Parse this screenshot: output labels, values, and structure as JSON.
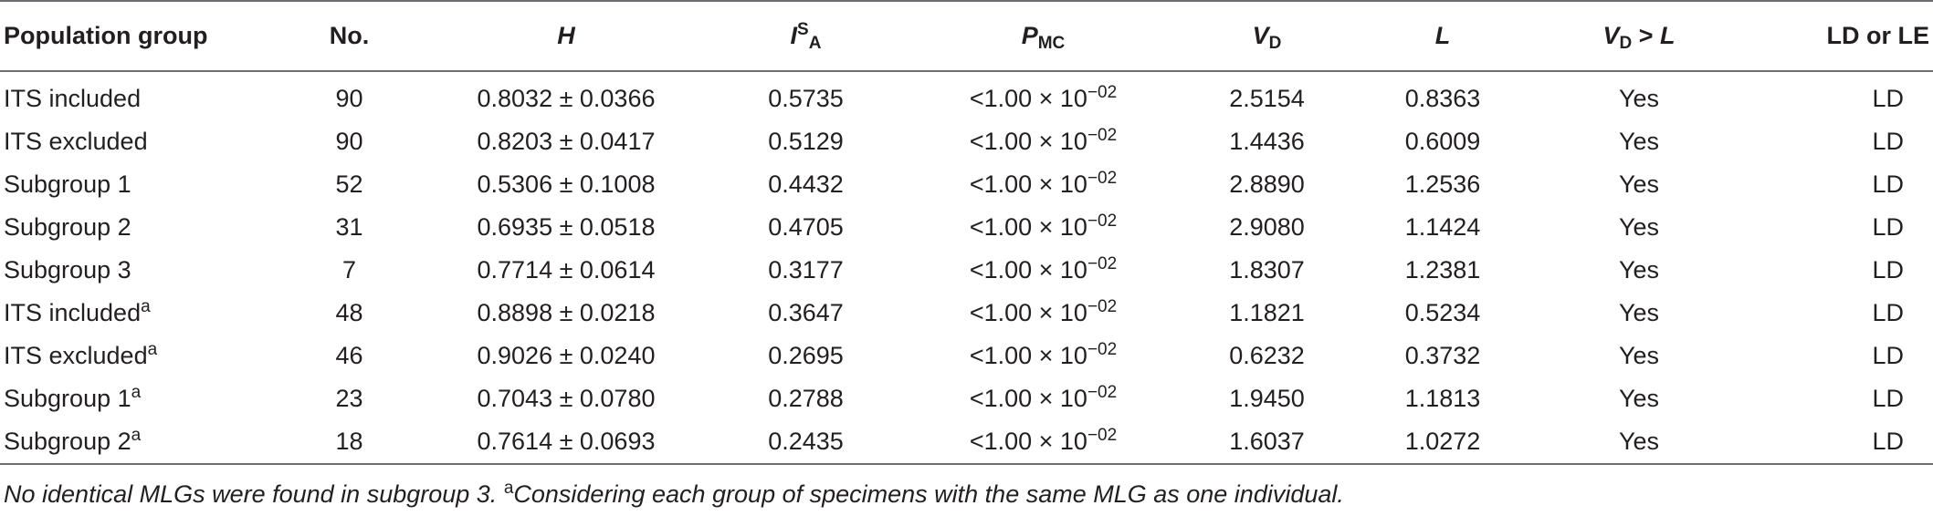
{
  "table": {
    "headers": {
      "group": "Population group",
      "no": "No.",
      "h": "H",
      "ia_base": "I",
      "ia_sup": "S",
      "ia_sub": "A",
      "pmc_base": "P",
      "pmc_sub": "MC",
      "vd_base": "V",
      "vd_sub": "D",
      "l": "L",
      "cmp_v": "V",
      "cmp_sub": "D",
      "cmp_op": " > ",
      "cmp_l": "L",
      "ld": "LD or LE"
    },
    "rows": [
      {
        "group": "ITS included",
        "sup": "",
        "no": "90",
        "h": "0.8032 ± 0.0366",
        "ia": "0.5735",
        "pmc_base": "<1.00 × 10",
        "pmc_exp": "−02",
        "vd": "2.5154",
        "l": "0.8363",
        "cmp": "Yes",
        "ld": "LD"
      },
      {
        "group": "ITS excluded",
        "sup": "",
        "no": "90",
        "h": "0.8203 ± 0.0417",
        "ia": "0.5129",
        "pmc_base": "<1.00 × 10",
        "pmc_exp": "−02",
        "vd": "1.4436",
        "l": "0.6009",
        "cmp": "Yes",
        "ld": "LD"
      },
      {
        "group": "Subgroup 1",
        "sup": "",
        "no": "52",
        "h": "0.5306 ± 0.1008",
        "ia": "0.4432",
        "pmc_base": "<1.00 × 10",
        "pmc_exp": "−02",
        "vd": "2.8890",
        "l": "1.2536",
        "cmp": "Yes",
        "ld": "LD"
      },
      {
        "group": "Subgroup 2",
        "sup": "",
        "no": "31",
        "h": "0.6935 ± 0.0518",
        "ia": "0.4705",
        "pmc_base": "<1.00 × 10",
        "pmc_exp": "−02",
        "vd": "2.9080",
        "l": "1.1424",
        "cmp": "Yes",
        "ld": "LD"
      },
      {
        "group": "Subgroup 3",
        "sup": "",
        "no": "7",
        "h": "0.7714 ± 0.0614",
        "ia": "0.3177",
        "pmc_base": "<1.00 × 10",
        "pmc_exp": "−02",
        "vd": "1.8307",
        "l": "1.2381",
        "cmp": "Yes",
        "ld": "LD"
      },
      {
        "group": "ITS included",
        "sup": "a",
        "no": "48",
        "h": "0.8898 ± 0.0218",
        "ia": "0.3647",
        "pmc_base": "<1.00 × 10",
        "pmc_exp": "−02",
        "vd": "1.1821",
        "l": "0.5234",
        "cmp": "Yes",
        "ld": "LD"
      },
      {
        "group": "ITS excluded",
        "sup": "a",
        "no": "46",
        "h": "0.9026 ± 0.0240",
        "ia": "0.2695",
        "pmc_base": "<1.00 × 10",
        "pmc_exp": "−02",
        "vd": "0.6232",
        "l": "0.3732",
        "cmp": "Yes",
        "ld": "LD"
      },
      {
        "group": "Subgroup 1",
        "sup": "a",
        "no": "23",
        "h": "0.7043 ± 0.0780",
        "ia": "0.2788",
        "pmc_base": "<1.00 × 10",
        "pmc_exp": "−02",
        "vd": "1.9450",
        "l": "1.1813",
        "cmp": "Yes",
        "ld": "LD"
      },
      {
        "group": "Subgroup 2",
        "sup": "a",
        "no": "18",
        "h": "0.7614 ± 0.0693",
        "ia": "0.2435",
        "pmc_base": "<1.00 × 10",
        "pmc_exp": "−02",
        "vd": "1.6037",
        "l": "1.0272",
        "cmp": "Yes",
        "ld": "LD"
      }
    ]
  },
  "footnote": {
    "part1": "No identical MLGs were found in subgroup 3. ",
    "marker": "a",
    "part2": "Considering each group of specimens with the same MLG as one individual."
  }
}
